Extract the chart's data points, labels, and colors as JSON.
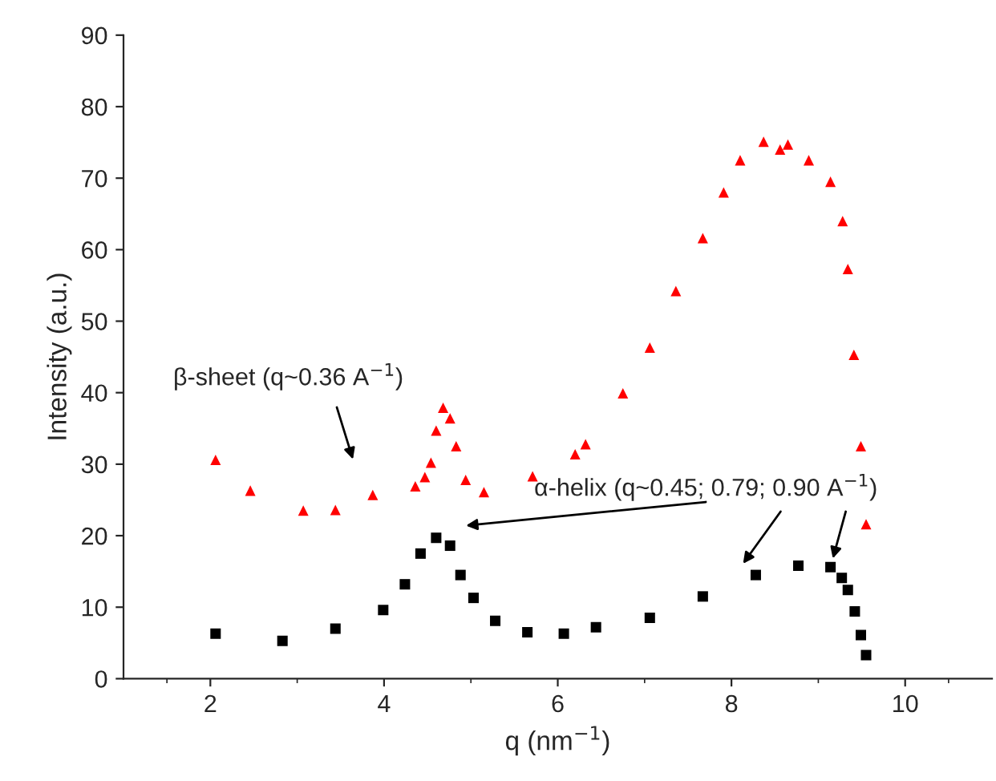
{
  "chart_data": {
    "type": "scatter",
    "xlabel": "q (nm$^{−1}$)",
    "ylabel": "Intensity (a.u.)",
    "xlim": [
      1,
      11
    ],
    "ylim": [
      0,
      90
    ],
    "xticks": [
      2,
      4,
      6,
      8,
      10
    ],
    "yticks": [
      0,
      10,
      20,
      30,
      40,
      50,
      60,
      70,
      80,
      90
    ],
    "grid": false,
    "legend": false,
    "series": [
      {
        "color": "#ff0000",
        "marker": "triangle",
        "x": [
          2.06,
          2.46,
          3.07,
          3.44,
          3.87,
          4.36,
          4.47,
          4.54,
          4.6,
          4.68,
          4.76,
          4.83,
          4.94,
          5.15,
          5.71,
          6.2,
          6.32,
          6.75,
          7.06,
          7.36,
          7.67,
          7.91,
          8.1,
          8.37,
          8.56,
          8.65,
          8.89,
          9.14,
          9.28,
          9.34,
          9.41,
          9.49,
          9.55
        ],
        "values": [
          30.6,
          26.3,
          23.5,
          23.6,
          25.7,
          26.9,
          28.2,
          30.2,
          34.7,
          37.9,
          36.4,
          32.5,
          27.8,
          26.1,
          28.3,
          31.4,
          32.8,
          39.9,
          46.3,
          54.2,
          61.6,
          68.0,
          72.5,
          75.1,
          74.0,
          74.7,
          72.5,
          69.5,
          64.0,
          57.3,
          45.3,
          32.5,
          21.6
        ]
      },
      {
        "color": "#000000",
        "marker": "square",
        "x": [
          2.06,
          2.83,
          3.44,
          3.99,
          4.24,
          4.42,
          4.6,
          4.76,
          4.88,
          5.03,
          5.28,
          5.65,
          6.07,
          6.44,
          7.06,
          7.67,
          8.28,
          8.77,
          9.14,
          9.27,
          9.34,
          9.42,
          9.49,
          9.55
        ],
        "values": [
          6.3,
          5.3,
          7.0,
          9.6,
          13.2,
          17.5,
          19.7,
          18.6,
          14.5,
          11.3,
          8.1,
          6.5,
          6.3,
          7.2,
          8.5,
          11.5,
          14.5,
          15.8,
          15.6,
          14.1,
          12.4,
          9.4,
          6.1,
          3.3
        ]
      }
    ],
    "annotations": [
      "β-sheet (q~0.36 A$^{−1}$)",
      {
        "text": "α-helix (q~0.45; 0.79; 0.90 A$^{−1}$)",
        "x": 9.14,
        "y": 15.6
      }
    ]
  }
}
